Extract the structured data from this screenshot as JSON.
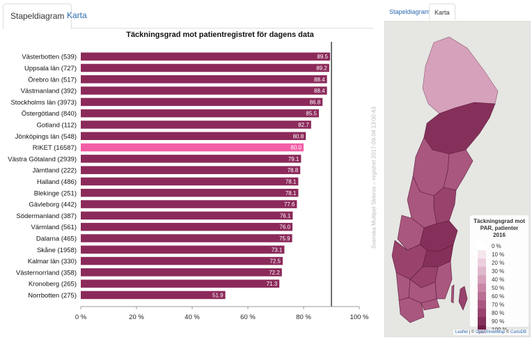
{
  "left_tabs": [
    {
      "label": "Stapeldiagram",
      "active": true
    },
    {
      "label": "Karta",
      "active": false
    }
  ],
  "right_tabs": [
    {
      "label": "Stapeldiagram",
      "active": false
    },
    {
      "label": "Karta",
      "active": true
    }
  ],
  "watermark": "Svenska Multipel Skleros – registret 2017-09-04 13:00:43",
  "chart_data": {
    "type": "bar",
    "orientation": "horizontal",
    "title": "Täckningsgrad mot patientregistret för dagens data",
    "categories": [
      "Västerbotten (539)",
      "Uppsala län (727)",
      "Örebro län (517)",
      "Västmanland (392)",
      "Stockholms län (3973)",
      "Östergötland (840)",
      "Gotland (112)",
      "Jönköpings län (548)",
      "RIKET (16587)",
      "Västra Götaland (2939)",
      "Jämtland (222)",
      "Halland (486)",
      "Blekinge (251)",
      "Gävleborg (442)",
      "Södermanland (387)",
      "Värmland (561)",
      "Dalarna (465)",
      "Skåne (1958)",
      "Kalmar län (330)",
      "Västernorrland (358)",
      "Kronoberg (265)",
      "Norrbotten (275)"
    ],
    "values": [
      89.5,
      89.2,
      88.4,
      88.4,
      86.8,
      85.5,
      82.7,
      80.8,
      80.0,
      79.1,
      78.8,
      78.1,
      78.1,
      77.6,
      76.1,
      76.0,
      75.9,
      73.1,
      72.5,
      72.2,
      71.3,
      51.9
    ],
    "value_labels": [
      "89.5",
      "89.2",
      "88.4",
      "88.4",
      "86.8",
      "85.5",
      "82.7",
      "80.8",
      "80.0",
      "79.1",
      "78.8",
      "78.1",
      "78.1",
      "77.6",
      "76.1",
      "76.0",
      "75.9",
      "73.1",
      "72.5",
      "72.2",
      "71.3",
      "51.9"
    ],
    "highlight_index": 8,
    "bar_color": "#8b2a5a",
    "highlight_color": "#f25fa6",
    "xlim": [
      0,
      100
    ],
    "xticks": [
      "0 %",
      "20 %",
      "40 %",
      "60 %",
      "80 %",
      "100 %"
    ],
    "tick_values": [
      0,
      20,
      40,
      60,
      80,
      100
    ],
    "reference_line": 90,
    "grid": false
  },
  "legend": {
    "title": "Täckningsgrad mot PAR, patienter 2016",
    "items": [
      {
        "label": "0 %",
        "color": "#ffffff"
      },
      {
        "label": "10 %",
        "color": "#f5e6ee"
      },
      {
        "label": "20 %",
        "color": "#ebcfdd"
      },
      {
        "label": "30 %",
        "color": "#e0b8cc"
      },
      {
        "label": "40 %",
        "color": "#d6a1bb"
      },
      {
        "label": "50 %",
        "color": "#c887a7"
      },
      {
        "label": "60 %",
        "color": "#b86f93"
      },
      {
        "label": "70 %",
        "color": "#a9577f"
      },
      {
        "label": "80 %",
        "color": "#98426c"
      },
      {
        "label": "90 %",
        "color": "#85305a"
      },
      {
        "label": "100 %",
        "color": "#701e48"
      }
    ]
  },
  "attribution": {
    "leaflet": "Leaflet",
    "sep1": " | © ",
    "osm": "OpenStreetMap",
    "sep2": " © ",
    "carto": "CartoDB"
  }
}
